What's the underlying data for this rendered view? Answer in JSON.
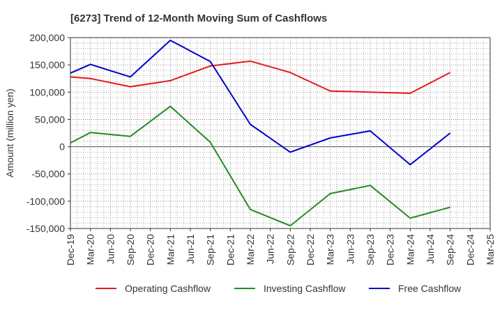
{
  "chart_data": {
    "type": "line",
    "title": "[6273]  Trend of 12-Month Moving Sum of Cashflows",
    "xlabel": "",
    "ylabel": "Amount (million yen)",
    "ylim": [
      -150000,
      200000
    ],
    "yticks": [
      200000,
      150000,
      100000,
      50000,
      0,
      -50000,
      -100000,
      -150000
    ],
    "ytick_labels": [
      "200,000",
      "150,000",
      "100,000",
      "50,000",
      "0",
      "-50,000",
      "-100,000",
      "-150,000"
    ],
    "x_labels": [
      "Dec-19",
      "Mar-20",
      "Jun-20",
      "Sep-20",
      "Dec-20",
      "Mar-21",
      "Jun-21",
      "Sep-21",
      "Dec-21",
      "Mar-22",
      "Jun-22",
      "Sep-22",
      "Dec-22",
      "Mar-23",
      "Jun-23",
      "Sep-23",
      "Dec-23",
      "Mar-24",
      "Jun-24",
      "Sep-24",
      "Dec-24",
      "Mar-25"
    ],
    "grid": true,
    "legend_position": "bottom",
    "series": [
      {
        "name": "Operating Cashflow",
        "color": "#e31a1c",
        "points": [
          [
            "Dec-19",
            128000
          ],
          [
            "Mar-20",
            125000
          ],
          [
            "Sep-20",
            110000
          ],
          [
            "Mar-21",
            121000
          ],
          [
            "Sep-21",
            148000
          ],
          [
            "Mar-22",
            157000
          ],
          [
            "Sep-22",
            136000
          ],
          [
            "Mar-23",
            102000
          ],
          [
            "Sep-23",
            100000
          ],
          [
            "Mar-24",
            98000
          ],
          [
            "Sep-24",
            136000
          ]
        ]
      },
      {
        "name": "Investing Cashflow",
        "color": "#228b22",
        "points": [
          [
            "Dec-19",
            7000
          ],
          [
            "Mar-20",
            26000
          ],
          [
            "Sep-20",
            19000
          ],
          [
            "Mar-21",
            74000
          ],
          [
            "Sep-21",
            8000
          ],
          [
            "Mar-22",
            -115000
          ],
          [
            "Sep-22",
            -145000
          ],
          [
            "Mar-23",
            -86000
          ],
          [
            "Sep-23",
            -71000
          ],
          [
            "Mar-24",
            -131000
          ],
          [
            "Sep-24",
            -111000
          ]
        ]
      },
      {
        "name": "Free Cashflow",
        "color": "#0000cc",
        "points": [
          [
            "Dec-19",
            135000
          ],
          [
            "Mar-20",
            151000
          ],
          [
            "Sep-20",
            128000
          ],
          [
            "Mar-21",
            195000
          ],
          [
            "Sep-21",
            156000
          ],
          [
            "Mar-22",
            41000
          ],
          [
            "Sep-22",
            -10000
          ],
          [
            "Mar-23",
            16000
          ],
          [
            "Sep-23",
            29000
          ],
          [
            "Mar-24",
            -33000
          ],
          [
            "Sep-24",
            25000
          ]
        ]
      }
    ]
  }
}
